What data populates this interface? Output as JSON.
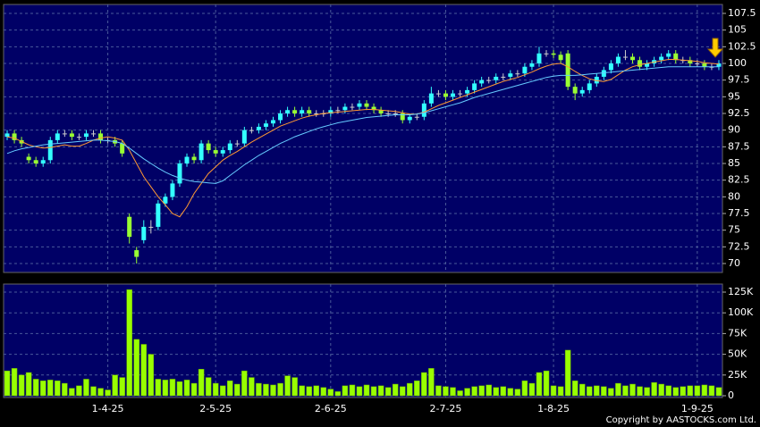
{
  "chart_data": [
    {
      "type": "candlestick",
      "up_color": "#33ffff",
      "down_color": "#99ff33",
      "doji_color": "#cccccc",
      "ylim": [
        68.66,
        108.84
      ],
      "yticks": [
        70,
        72.5,
        75,
        77.5,
        80,
        82.5,
        85,
        87.5,
        90,
        92.5,
        95,
        97.5,
        100,
        102.5,
        105,
        107.5
      ],
      "grid": true,
      "open": [
        89,
        89.5,
        88.5,
        86,
        85.5,
        85,
        85.5,
        88.5,
        89.5,
        89.5,
        89,
        89,
        89.5,
        89.5,
        88.5,
        88.5,
        88,
        77,
        72,
        73.5,
        75.5,
        75.5,
        79,
        80,
        82,
        85,
        86,
        85.5,
        88,
        87,
        86.5,
        87,
        88,
        88,
        90,
        90,
        90.5,
        91,
        91.5,
        92.5,
        93,
        92.5,
        93,
        92.5,
        92.5,
        92.5,
        93,
        93,
        93.5,
        93.5,
        94,
        93.5,
        93,
        92.5,
        92.5,
        92.5,
        91.5,
        92,
        92,
        94,
        95.5,
        95.5,
        95,
        95.5,
        95.5,
        96,
        97,
        97.5,
        97.5,
        98,
        98,
        98.5,
        98.5,
        99.5,
        100,
        101.5,
        101.5,
        101.3,
        101.5,
        96.5,
        95.5,
        96,
        97,
        98,
        99,
        100,
        101,
        101,
        100.5,
        99.5,
        100,
        100.5,
        101,
        101.5,
        100.5,
        100.5,
        100,
        100,
        99.5,
        99.5
      ],
      "high": [
        90,
        90,
        89,
        86.5,
        86,
        86,
        89,
        90,
        90,
        90,
        89.5,
        90,
        90,
        90,
        89,
        89,
        88.5,
        77.5,
        72.5,
        76.5,
        76.5,
        79.5,
        80.5,
        82.5,
        85.5,
        86.5,
        86.5,
        88.5,
        88.5,
        87.5,
        87.5,
        88.5,
        88.5,
        90.5,
        90.5,
        91,
        91.5,
        92,
        93,
        93.5,
        93.5,
        93.5,
        93.5,
        93,
        93,
        93.5,
        93.5,
        94,
        94,
        94.5,
        94.5,
        94,
        93.5,
        93,
        93,
        93,
        92.5,
        92.5,
        94.5,
        96.5,
        96,
        96,
        96,
        96,
        96.5,
        97.5,
        98,
        98,
        98.5,
        98.5,
        99,
        99,
        100,
        100.5,
        102.5,
        102,
        102,
        101.8,
        102,
        97,
        96.5,
        97.5,
        98.5,
        99.5,
        100.5,
        101.5,
        102,
        101.5,
        101,
        100.5,
        101,
        101.5,
        102,
        102,
        101,
        101,
        100.5,
        100.5,
        100,
        100.5
      ],
      "low": [
        88.5,
        88,
        87.5,
        85,
        84.5,
        84.5,
        85,
        88,
        89,
        88.5,
        88.5,
        88.5,
        89,
        88,
        88,
        87.5,
        86,
        73,
        70,
        73,
        74.5,
        75,
        78.5,
        79.5,
        81.5,
        84.5,
        85,
        85,
        86.5,
        86,
        86,
        86.5,
        87.5,
        87.5,
        89.5,
        89.5,
        90,
        90.5,
        91,
        92,
        92,
        92,
        92,
        92,
        92,
        92,
        92.5,
        92.5,
        93,
        93,
        93,
        92.5,
        92,
        92,
        92,
        91,
        91,
        91.5,
        91.5,
        93.5,
        95,
        94.5,
        94.5,
        95,
        95,
        95.5,
        96.5,
        97,
        97,
        97.5,
        97.5,
        98,
        98,
        99,
        99.5,
        101,
        100.8,
        100,
        96,
        94.5,
        95,
        95.5,
        96.5,
        97.5,
        98.5,
        99.5,
        100.5,
        100,
        99,
        99,
        99.5,
        100,
        100.5,
        100,
        100,
        99.5,
        99.5,
        99,
        99,
        99
      ],
      "close": [
        89.5,
        88.5,
        88,
        85.5,
        85,
        85.5,
        88.5,
        89.5,
        89.5,
        89,
        89,
        89.5,
        89.5,
        88.5,
        88.5,
        88,
        86.5,
        74,
        71,
        75.5,
        75.5,
        79,
        80,
        82,
        85,
        86,
        85.5,
        88,
        87,
        86.5,
        87,
        88,
        88,
        90,
        90,
        90.5,
        91,
        91.5,
        92.5,
        93,
        92.5,
        93,
        92.5,
        92.5,
        92.5,
        93,
        93,
        93.5,
        93.5,
        94,
        93.5,
        93,
        92.5,
        92.5,
        92.5,
        91.5,
        92,
        92,
        94,
        95.5,
        95.5,
        95,
        95.5,
        95.5,
        96,
        97,
        97.5,
        97.5,
        98,
        98,
        98.5,
        98.5,
        99.5,
        100,
        101.5,
        101.5,
        101.3,
        100.5,
        96.5,
        95.5,
        96,
        97,
        98,
        99,
        100,
        101,
        101,
        100.5,
        99.5,
        100,
        100.5,
        101,
        101.5,
        100.5,
        100.5,
        100,
        100,
        99.5,
        99.5,
        100
      ],
      "series": [
        {
          "color": "#ff9933",
          "values": [
            89,
            88.8,
            88.3,
            87.8,
            87.5,
            87.3,
            87.4,
            87.6,
            87.8,
            87.6,
            87.6,
            88,
            88.5,
            88.8,
            89,
            88.8,
            88.5,
            87,
            85,
            83,
            81.5,
            80,
            78.8,
            77.5,
            77,
            78.5,
            80.5,
            82,
            83.5,
            84.5,
            85.5,
            86.2,
            86.8,
            87.5,
            88.2,
            88.8,
            89.4,
            90,
            90.6,
            91,
            91.4,
            91.8,
            92.1,
            92.3,
            92.5,
            92.6,
            92.7,
            92.8,
            92.9,
            93,
            93.1,
            93.1,
            93,
            92.9,
            92.8,
            92.6,
            92.4,
            92.4,
            92.7,
            93.2,
            93.7,
            94.1,
            94.5,
            94.9,
            95.3,
            95.7,
            96.1,
            96.5,
            96.9,
            97.3,
            97.6,
            97.9,
            98.3,
            98.7,
            99.2,
            99.6,
            99.9,
            100,
            99.5,
            98.8,
            98.2,
            97.7,
            97.4,
            97.3,
            97.6,
            98.3,
            99,
            99.5,
            99.8,
            100,
            100.2,
            100.4,
            100.6,
            100.6,
            100.5,
            100.4,
            100.3,
            100.1,
            100,
            99.9
          ]
        },
        {
          "color": "#66ccff",
          "values": [
            86.5,
            86.9,
            87.2,
            87.4,
            87.6,
            87.8,
            87.9,
            88,
            88.1,
            88.2,
            88.3,
            88.4,
            88.5,
            88.5,
            88.4,
            88.3,
            88,
            87.3,
            86.5,
            85.7,
            85,
            84.3,
            83.7,
            83.2,
            82.8,
            82.5,
            82.3,
            82.2,
            82.1,
            82,
            82.4,
            83.2,
            84,
            84.8,
            85.5,
            86.2,
            86.8,
            87.4,
            88,
            88.5,
            89,
            89.4,
            89.8,
            90.2,
            90.5,
            90.8,
            91.1,
            91.3,
            91.5,
            91.7,
            91.9,
            92,
            92.1,
            92.2,
            92.3,
            92.3,
            92.3,
            92.4,
            92.6,
            92.9,
            93.2,
            93.5,
            93.8,
            94.1,
            94.5,
            94.9,
            95.2,
            95.5,
            95.8,
            96.1,
            96.4,
            96.7,
            97,
            97.3,
            97.6,
            97.9,
            98.1,
            98.2,
            98.2,
            98.2,
            98.3,
            98.4,
            98.5,
            98.6,
            98.7,
            98.8,
            98.9,
            99,
            99.1,
            99.2,
            99.3,
            99.4,
            99.5,
            99.5,
            99.5,
            99.5,
            99.5,
            99.5,
            99.5,
            99.5
          ]
        }
      ]
    },
    {
      "type": "bar",
      "color": "#99ff00",
      "ylim": [
        -2150,
        134700
      ],
      "yticks": [
        0,
        {
          "value": 25000,
          "label": "25K"
        },
        {
          "value": 50000,
          "label": "50K"
        },
        {
          "value": 75000,
          "label": "75K"
        },
        {
          "value": 100000,
          "label": "100K"
        },
        {
          "value": 125000,
          "label": "125K"
        }
      ],
      "grid": true,
      "categories": [
        null,
        null,
        null,
        null,
        null,
        null,
        null,
        null,
        null,
        null,
        null,
        null,
        null,
        null,
        "1-4-25",
        null,
        null,
        null,
        null,
        null,
        null,
        null,
        null,
        null,
        null,
        null,
        null,
        null,
        null,
        "2-5-25",
        null,
        null,
        null,
        null,
        null,
        null,
        null,
        null,
        null,
        null,
        null,
        null,
        null,
        null,
        null,
        "2-6-25",
        null,
        null,
        null,
        null,
        null,
        null,
        null,
        null,
        null,
        null,
        null,
        null,
        null,
        null,
        null,
        "2-7-25",
        null,
        null,
        null,
        null,
        null,
        null,
        null,
        null,
        null,
        null,
        null,
        null,
        null,
        null,
        "1-8-25",
        null,
        null,
        null,
        null,
        null,
        null,
        null,
        null,
        null,
        null,
        null,
        null,
        null,
        null,
        null,
        null,
        null,
        null,
        null,
        "1-9-25",
        null,
        null,
        null
      ],
      "values": [
        30000,
        33000,
        25000,
        28000,
        20000,
        18000,
        19000,
        18000,
        15000,
        9000,
        12000,
        20000,
        11000,
        9000,
        7000,
        25000,
        22000,
        128000,
        68000,
        62000,
        50000,
        20000,
        19000,
        20000,
        17000,
        19000,
        15000,
        32000,
        22000,
        15000,
        12000,
        18000,
        14000,
        30000,
        22000,
        15000,
        14000,
        13000,
        15000,
        24000,
        22000,
        12000,
        11000,
        12000,
        10000,
        8000,
        5000,
        12000,
        13000,
        11000,
        13000,
        11000,
        12000,
        10000,
        14000,
        11000,
        15000,
        18000,
        28000,
        33000,
        12000,
        11000,
        10000,
        6000,
        9000,
        11000,
        12000,
        13000,
        10000,
        11000,
        9000,
        8000,
        18000,
        15000,
        28000,
        30000,
        12000,
        11000,
        55000,
        18000,
        14000,
        11000,
        12000,
        11000,
        9000,
        15000,
        12000,
        14000,
        11000,
        10000,
        16000,
        14000,
        12000,
        10000,
        11000,
        12000,
        12000,
        13000,
        12000,
        10000
      ]
    }
  ],
  "footer": "Copyright by AASTOCKS.com Ltd."
}
